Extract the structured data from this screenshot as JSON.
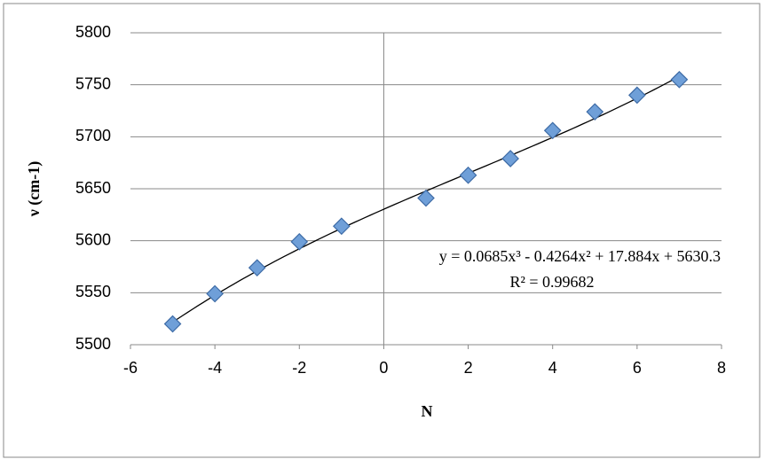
{
  "chart_data": {
    "type": "scatter",
    "x_label": "N",
    "y_label": "ν (cm-1)",
    "series": [
      {
        "name": "ν",
        "color": "#6f9fd8",
        "x": [
          -5,
          -4,
          -3,
          -2,
          -1,
          1,
          2,
          3,
          4,
          5,
          6,
          7
        ],
        "values": [
          5520,
          5549,
          5574,
          5599,
          5614,
          5641,
          5663,
          5679,
          5706,
          5724,
          5740,
          5755
        ]
      }
    ],
    "trendline": {
      "type": "polynomial",
      "coefficients": [
        0.0685,
        -0.4264,
        17.884,
        5630.3
      ],
      "color": "#000000",
      "equation": "y = 0.0685x³ - 0.4264x² + 17.884x + 5630.3",
      "r_squared": "R² = 0.99682"
    },
    "xlim": [
      -6,
      8
    ],
    "xticks": [
      -6,
      -4,
      -2,
      0,
      2,
      4,
      6,
      8
    ],
    "ylim": [
      5500,
      5800
    ],
    "yticks": [
      5500,
      5550,
      5600,
      5650,
      5700,
      5750,
      5800
    ],
    "grid": true,
    "legend": false
  }
}
